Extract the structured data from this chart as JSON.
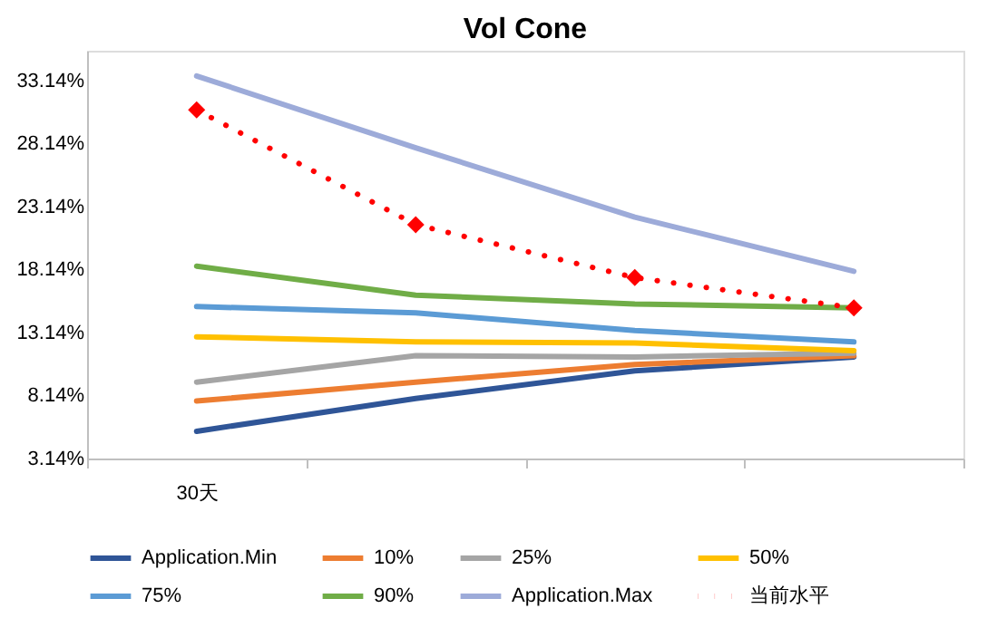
{
  "chart_data": {
    "type": "line",
    "title": "Vol Cone",
    "categories": [
      "30天",
      null,
      null,
      null
    ],
    "ylim": [
      3.14,
      35.5
    ],
    "yticks": [
      {
        "value": 3.14,
        "label": "3.14%"
      },
      {
        "value": 8.14,
        "label": "8.14%"
      },
      {
        "value": 13.14,
        "label": "13.14%"
      },
      {
        "value": 18.14,
        "label": "18.14%"
      },
      {
        "value": 23.14,
        "label": "23.14%"
      },
      {
        "value": 28.14,
        "label": "28.14%"
      },
      {
        "value": 33.14,
        "label": "33.14%"
      }
    ],
    "grid": false,
    "legend": "bottom",
    "marker": "none",
    "line_style": "solid",
    "series": [
      {
        "name": "Application.Min",
        "color": "#2f5597",
        "values": [
          5.3,
          7.9,
          10.1,
          11.2
        ]
      },
      {
        "name": "10%",
        "color": "#ed7d31",
        "values": [
          7.7,
          9.2,
          10.6,
          11.3
        ]
      },
      {
        "name": "25%",
        "color": "#a5a5a5",
        "values": [
          9.2,
          11.3,
          11.2,
          11.5
        ]
      },
      {
        "name": "50%",
        "color": "#ffc000",
        "values": [
          12.8,
          12.4,
          12.3,
          11.7
        ]
      },
      {
        "name": "75%",
        "color": "#5b9bd5",
        "values": [
          15.2,
          14.7,
          13.3,
          12.4
        ]
      },
      {
        "name": "90%",
        "color": "#70ad47",
        "values": [
          18.4,
          16.1,
          15.4,
          15.1
        ]
      },
      {
        "name": "Application.Max",
        "color": "#9dabd9",
        "values": [
          33.5,
          27.8,
          22.3,
          18
        ]
      },
      {
        "name": "当前水平",
        "color": "#ff0000",
        "values": [
          30.8,
          21.7,
          17.5,
          15.1
        ],
        "line_style": "dotted",
        "marker": "diamond"
      }
    ]
  }
}
